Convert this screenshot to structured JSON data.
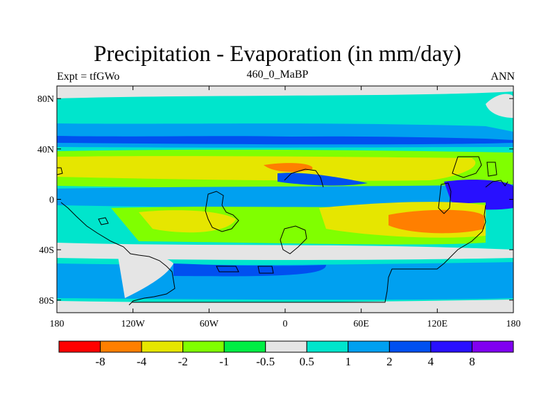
{
  "title": "Precipitation - Evaporation (in mm/day)",
  "subtitle_left": "Expt = tfGWo",
  "subtitle_center": "460_0_MaBP",
  "subtitle_right": "ANN",
  "lat_ticks": [
    "80N",
    "40N",
    "0",
    "40S",
    "80S"
  ],
  "lon_ticks": [
    "180",
    "120W",
    "60W",
    "0",
    "60E",
    "120E",
    "180"
  ],
  "colorbar": {
    "colors": [
      "#ff0000",
      "#ff7f00",
      "#e6e600",
      "#80ff00",
      "#00ee44",
      "#e5e5e5",
      "#00e5cc",
      "#00a0f0",
      "#0050f0",
      "#2810ff",
      "#8000f0"
    ],
    "labels": [
      "-8",
      "-4",
      "-2",
      "-1",
      "-0.5",
      "0.5",
      "1",
      "2",
      "4",
      "8"
    ]
  },
  "chart_data": {
    "type": "heatmap",
    "variable": "Precipitation - Evaporation",
    "units": "mm/day",
    "experiment": "tfGWo",
    "period": "460_0_MaBP",
    "season": "ANN",
    "lon_range": [
      -180,
      180
    ],
    "lat_range": [
      -90,
      90
    ],
    "levels": [
      -8,
      -4,
      -2,
      -1,
      -0.5,
      0.5,
      1,
      2,
      4,
      8
    ]
  }
}
